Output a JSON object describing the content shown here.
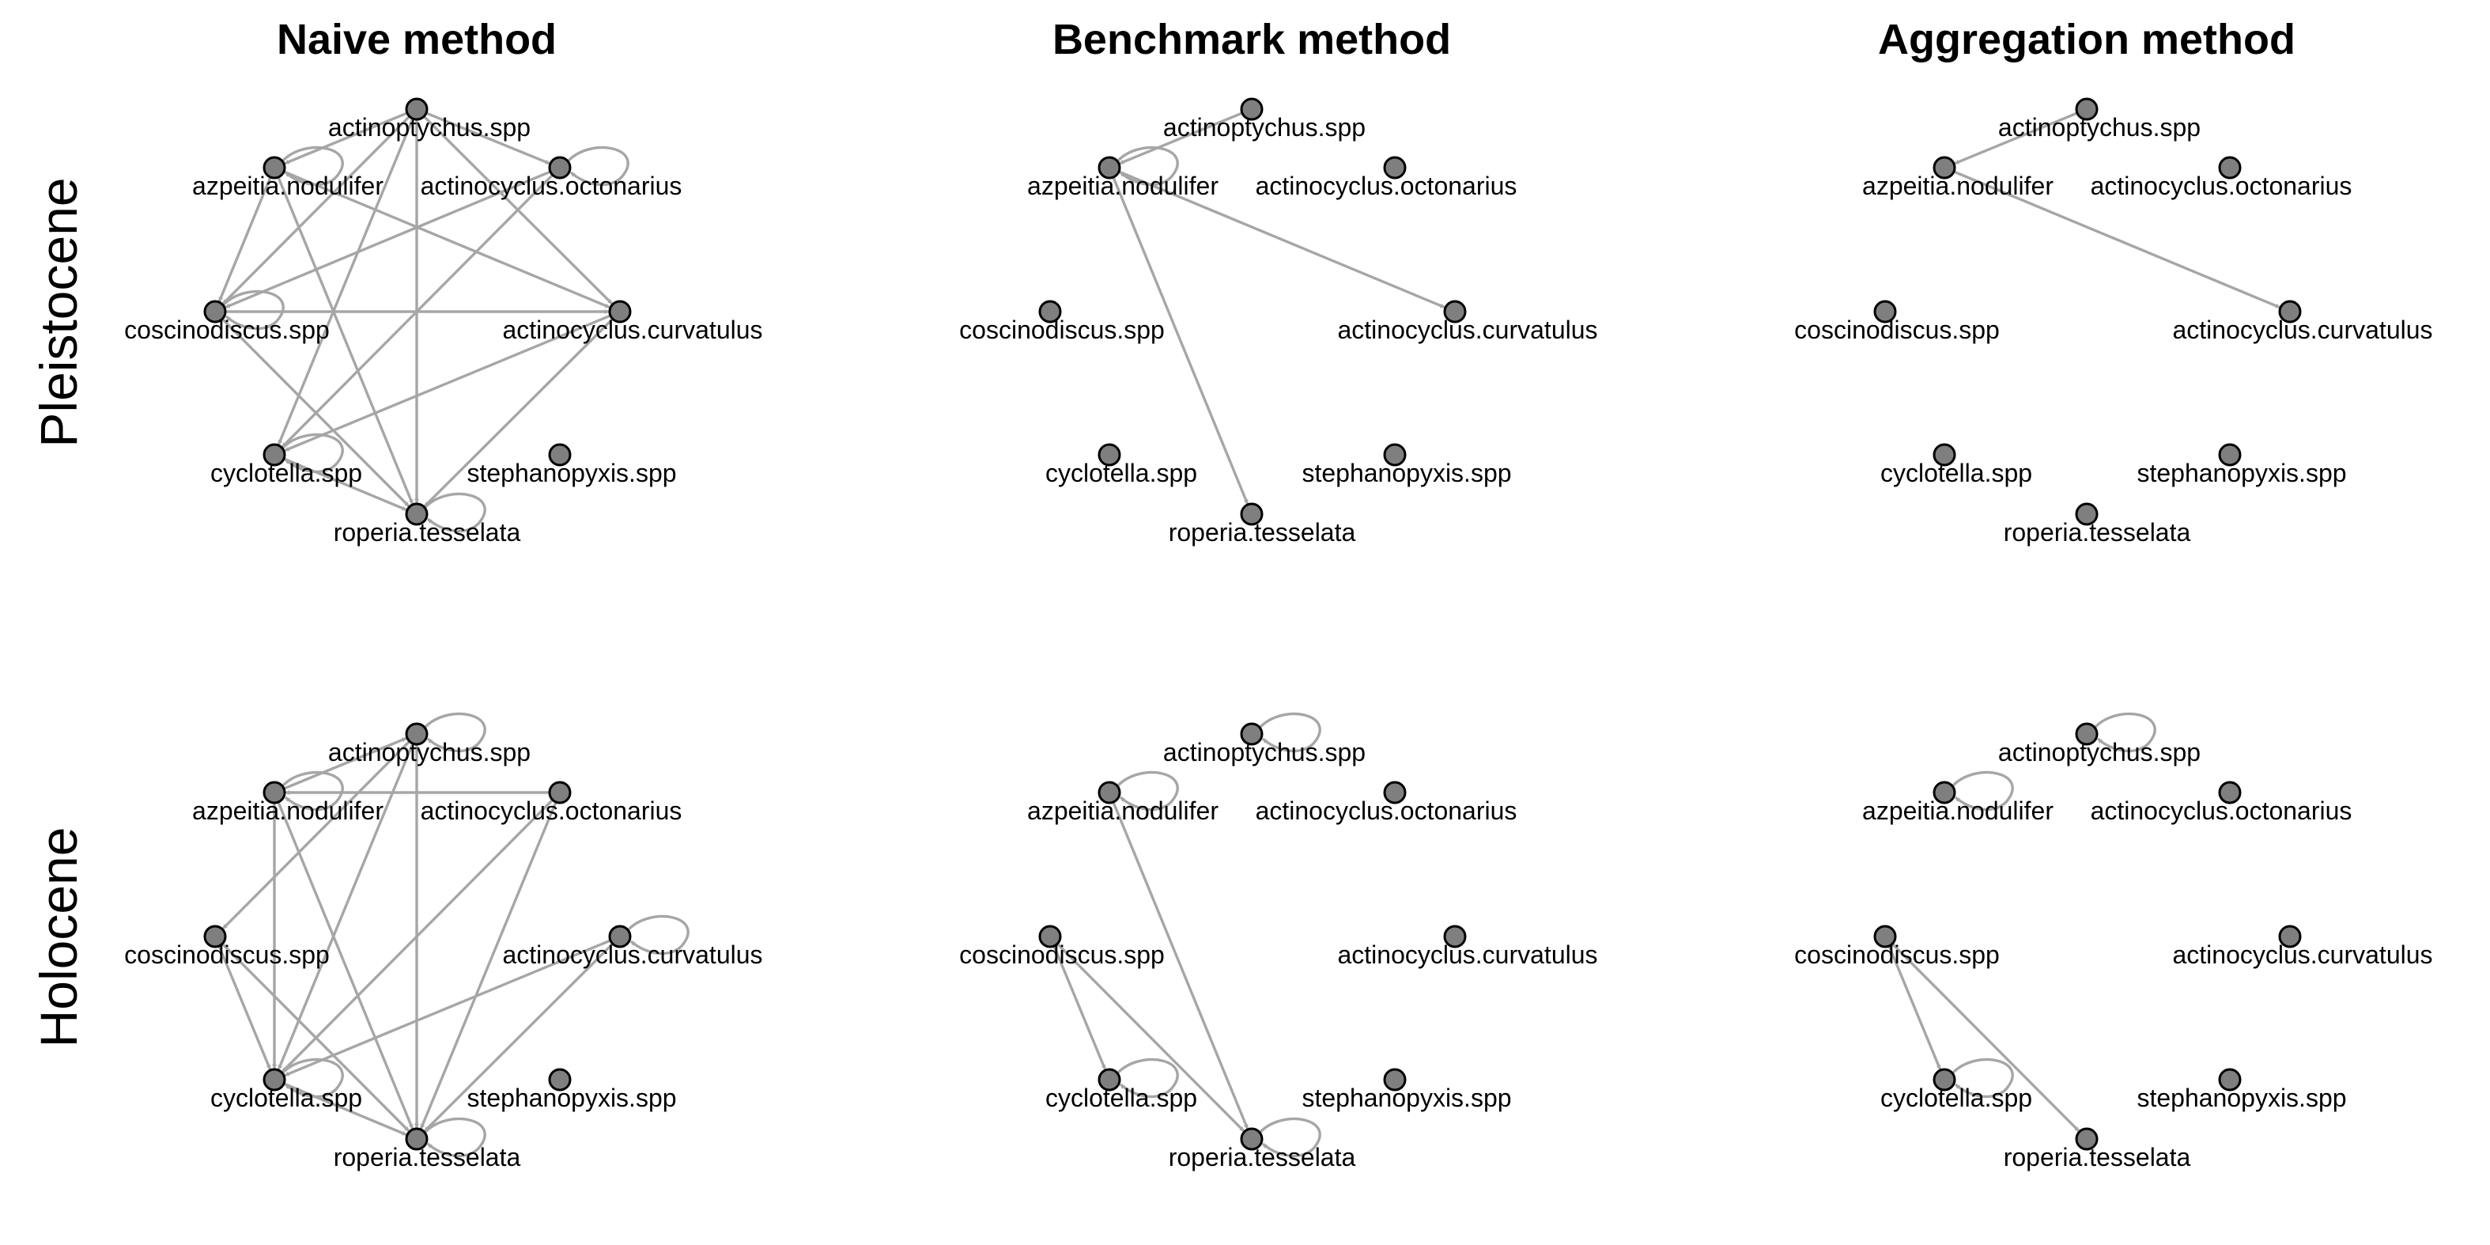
{
  "columns": [
    "Naive method",
    "Benchmark method",
    "Aggregation method"
  ],
  "rows": [
    "Pleistocene",
    "Holocene"
  ],
  "nodes": [
    {
      "id": "act",
      "label": "actinoptychus.spp"
    },
    {
      "id": "azp",
      "label": "azpeitia.nodulifer"
    },
    {
      "id": "oct",
      "label": "actinocyclus.octonarius"
    },
    {
      "id": "cos",
      "label": "coscinodiscus.spp"
    },
    {
      "id": "cur",
      "label": "actinocyclus.curvatulus"
    },
    {
      "id": "cyc",
      "label": "cyclotella.spp"
    },
    {
      "id": "ste",
      "label": "stephanopyxis.spp"
    },
    {
      "id": "rop",
      "label": "roperia.tesselata"
    }
  ],
  "colors": {
    "edge": "#a6a6a6",
    "node_fill": "#7f7f7f",
    "node_stroke": "#000000"
  },
  "networks": [
    {
      "row": "Pleistocene",
      "column": "Naive method",
      "edges": [
        [
          "act",
          "azp"
        ],
        [
          "act",
          "cos"
        ],
        [
          "act",
          "cyc"
        ],
        [
          "act",
          "rop"
        ],
        [
          "act",
          "cur"
        ],
        [
          "act",
          "oct"
        ],
        [
          "azp",
          "cos"
        ],
        [
          "azp",
          "rop"
        ],
        [
          "azp",
          "cur"
        ],
        [
          "oct",
          "cos"
        ],
        [
          "oct",
          "cyc"
        ],
        [
          "cos",
          "cur"
        ],
        [
          "cos",
          "rop"
        ],
        [
          "cur",
          "cyc"
        ],
        [
          "cur",
          "rop"
        ],
        [
          "cyc",
          "rop"
        ]
      ],
      "self_loops": [
        "azp",
        "oct",
        "cos",
        "cyc",
        "rop"
      ]
    },
    {
      "row": "Pleistocene",
      "column": "Benchmark method",
      "edges": [
        [
          "act",
          "azp"
        ],
        [
          "azp",
          "rop"
        ],
        [
          "azp",
          "cur"
        ]
      ],
      "self_loops": [
        "azp"
      ]
    },
    {
      "row": "Pleistocene",
      "column": "Aggregation method",
      "edges": [
        [
          "act",
          "azp"
        ],
        [
          "azp",
          "cur"
        ]
      ],
      "self_loops": []
    },
    {
      "row": "Holocene",
      "column": "Naive method",
      "edges": [
        [
          "azp",
          "act"
        ],
        [
          "act",
          "cos"
        ],
        [
          "act",
          "cyc"
        ],
        [
          "act",
          "rop"
        ],
        [
          "azp",
          "cyc"
        ],
        [
          "azp",
          "rop"
        ],
        [
          "oct",
          "azp"
        ],
        [
          "oct",
          "cyc"
        ],
        [
          "oct",
          "rop"
        ],
        [
          "cos",
          "cyc"
        ],
        [
          "cos",
          "rop"
        ],
        [
          "cur",
          "cyc"
        ],
        [
          "cur",
          "rop"
        ],
        [
          "cyc",
          "rop"
        ]
      ],
      "self_loops": [
        "act",
        "azp",
        "cur",
        "cyc",
        "rop"
      ]
    },
    {
      "row": "Holocene",
      "column": "Benchmark method",
      "edges": [
        [
          "azp",
          "rop"
        ],
        [
          "cos",
          "cyc"
        ],
        [
          "cos",
          "rop"
        ]
      ],
      "self_loops": [
        "act",
        "azp",
        "cyc",
        "rop"
      ]
    },
    {
      "row": "Holocene",
      "column": "Aggregation method",
      "edges": [
        [
          "cos",
          "cyc"
        ],
        [
          "cos",
          "rop"
        ]
      ],
      "self_loops": [
        "act",
        "azp",
        "cyc"
      ]
    }
  ]
}
